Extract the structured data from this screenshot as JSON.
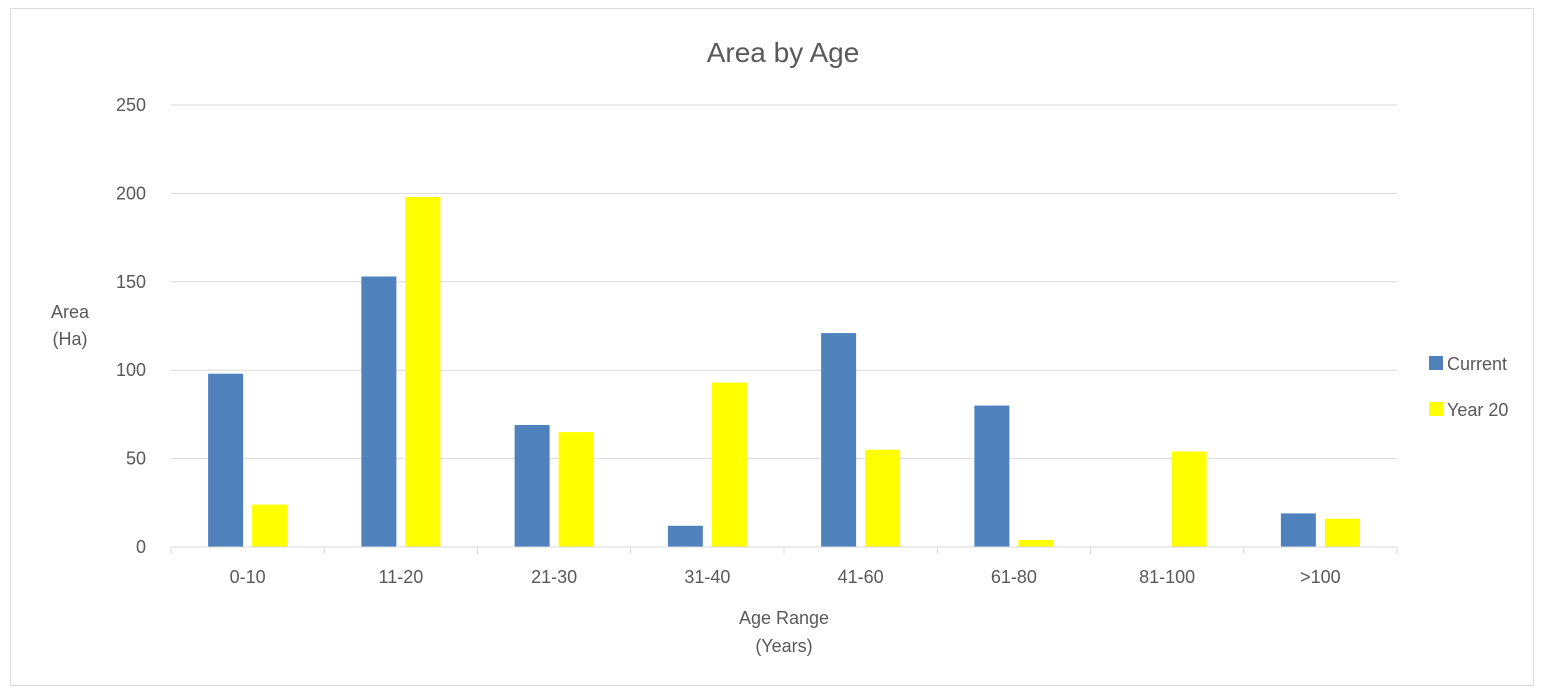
{
  "chart_data": {
    "type": "bar",
    "title": "Area by Age",
    "xlabel": [
      "Age Range",
      "(Years)"
    ],
    "ylabel": [
      "Area",
      "(Ha)"
    ],
    "categories": [
      "0-10",
      "11-20",
      "21-30",
      "31-40",
      "41-60",
      "61-80",
      "81-100",
      ">100"
    ],
    "series": [
      {
        "name": "Current",
        "color": "#4f81bd",
        "values": [
          98,
          153,
          69,
          12,
          121,
          80,
          0,
          19
        ]
      },
      {
        "name": "Year 20",
        "color": "#ffff00",
        "values": [
          24,
          198,
          65,
          93,
          55,
          4,
          54,
          16
        ]
      }
    ],
    "ylim": [
      0,
      250
    ],
    "yticks": [
      0,
      50,
      100,
      150,
      200,
      250
    ],
    "grid": true,
    "legend_position": "right"
  }
}
